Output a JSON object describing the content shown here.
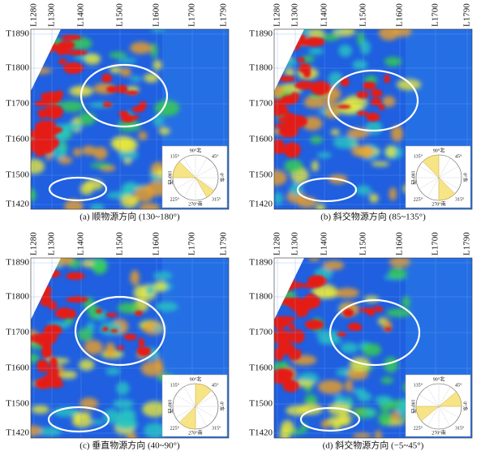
{
  "panels": [
    {
      "caption": "(a) 顺物源方向 (130~180°)"
    },
    {
      "caption": "(b) 斜交物源方向 (85~135°)"
    },
    {
      "caption": "(c) 垂直物源方向 (40~90°)"
    },
    {
      "caption": "(d) 斜交物源方向 (−5~45°)"
    }
  ],
  "x_labels": [
    "L1280",
    "L1300",
    "L1400",
    "L1500",
    "L1600",
    "L1700",
    "L1790"
  ],
  "y_labels": [
    "T1890",
    "T1800",
    "T1700",
    "T1600",
    "T1500",
    "T1420"
  ],
  "rose_labels": {
    "north": "90°北",
    "ne": "45°",
    "east": "0°东",
    "se": "315°",
    "south": "270°南",
    "sw": "225°",
    "west": "180°西",
    "nw": "135°"
  }
}
